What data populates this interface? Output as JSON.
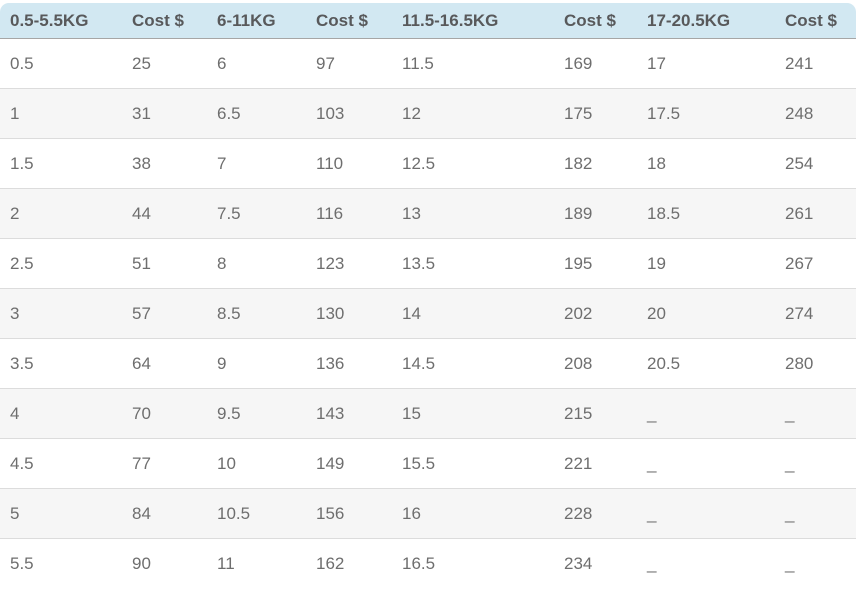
{
  "table": {
    "headers": [
      {
        "label": "0.5-5.5KG"
      },
      {
        "label": "Cost $"
      },
      {
        "label": "6-11KG"
      },
      {
        "label": "Cost $"
      },
      {
        "label": "11.5-16.5KG"
      },
      {
        "label": "Cost $"
      },
      {
        "label": "17-20.5KG"
      },
      {
        "label": "Cost $"
      }
    ],
    "rows": [
      [
        "0.5",
        "25",
        "6",
        "97",
        "11.5",
        "169",
        "17",
        "241"
      ],
      [
        "1",
        "31",
        "6.5",
        "103",
        "12",
        "175",
        "17.5",
        "248"
      ],
      [
        "1.5",
        "38",
        "7",
        "110",
        "12.5",
        "182",
        "18",
        "254"
      ],
      [
        "2",
        "44",
        "7.5",
        "116",
        "13",
        "189",
        "18.5",
        "261"
      ],
      [
        "2.5",
        "51",
        "8",
        "123",
        "13.5",
        "195",
        "19",
        "267"
      ],
      [
        "3",
        "57",
        "8.5",
        "130",
        "14",
        "202",
        "20",
        "274"
      ],
      [
        "3.5",
        "64",
        "9",
        "136",
        "14.5",
        "208",
        "20.5",
        "280"
      ],
      [
        "4",
        "70",
        "9.5",
        "143",
        "15",
        "215",
        "_",
        "_"
      ],
      [
        "4.5",
        "77",
        "10",
        "149",
        "15.5",
        "221",
        "_",
        "_"
      ],
      [
        "5",
        "84",
        "10.5",
        "156",
        "16",
        "228",
        "_",
        "_"
      ],
      [
        "5.5",
        "90",
        "11",
        "162",
        "16.5",
        "234",
        "_",
        "_"
      ]
    ]
  },
  "colors": {
    "header_bg": "#d2e8f2",
    "header_text": "#58595b",
    "cell_text": "#6e6e6e",
    "stripe_row_bg": "#f6f6f6",
    "row_border": "#dcdcdc",
    "header_border": "#a6a6a6"
  }
}
